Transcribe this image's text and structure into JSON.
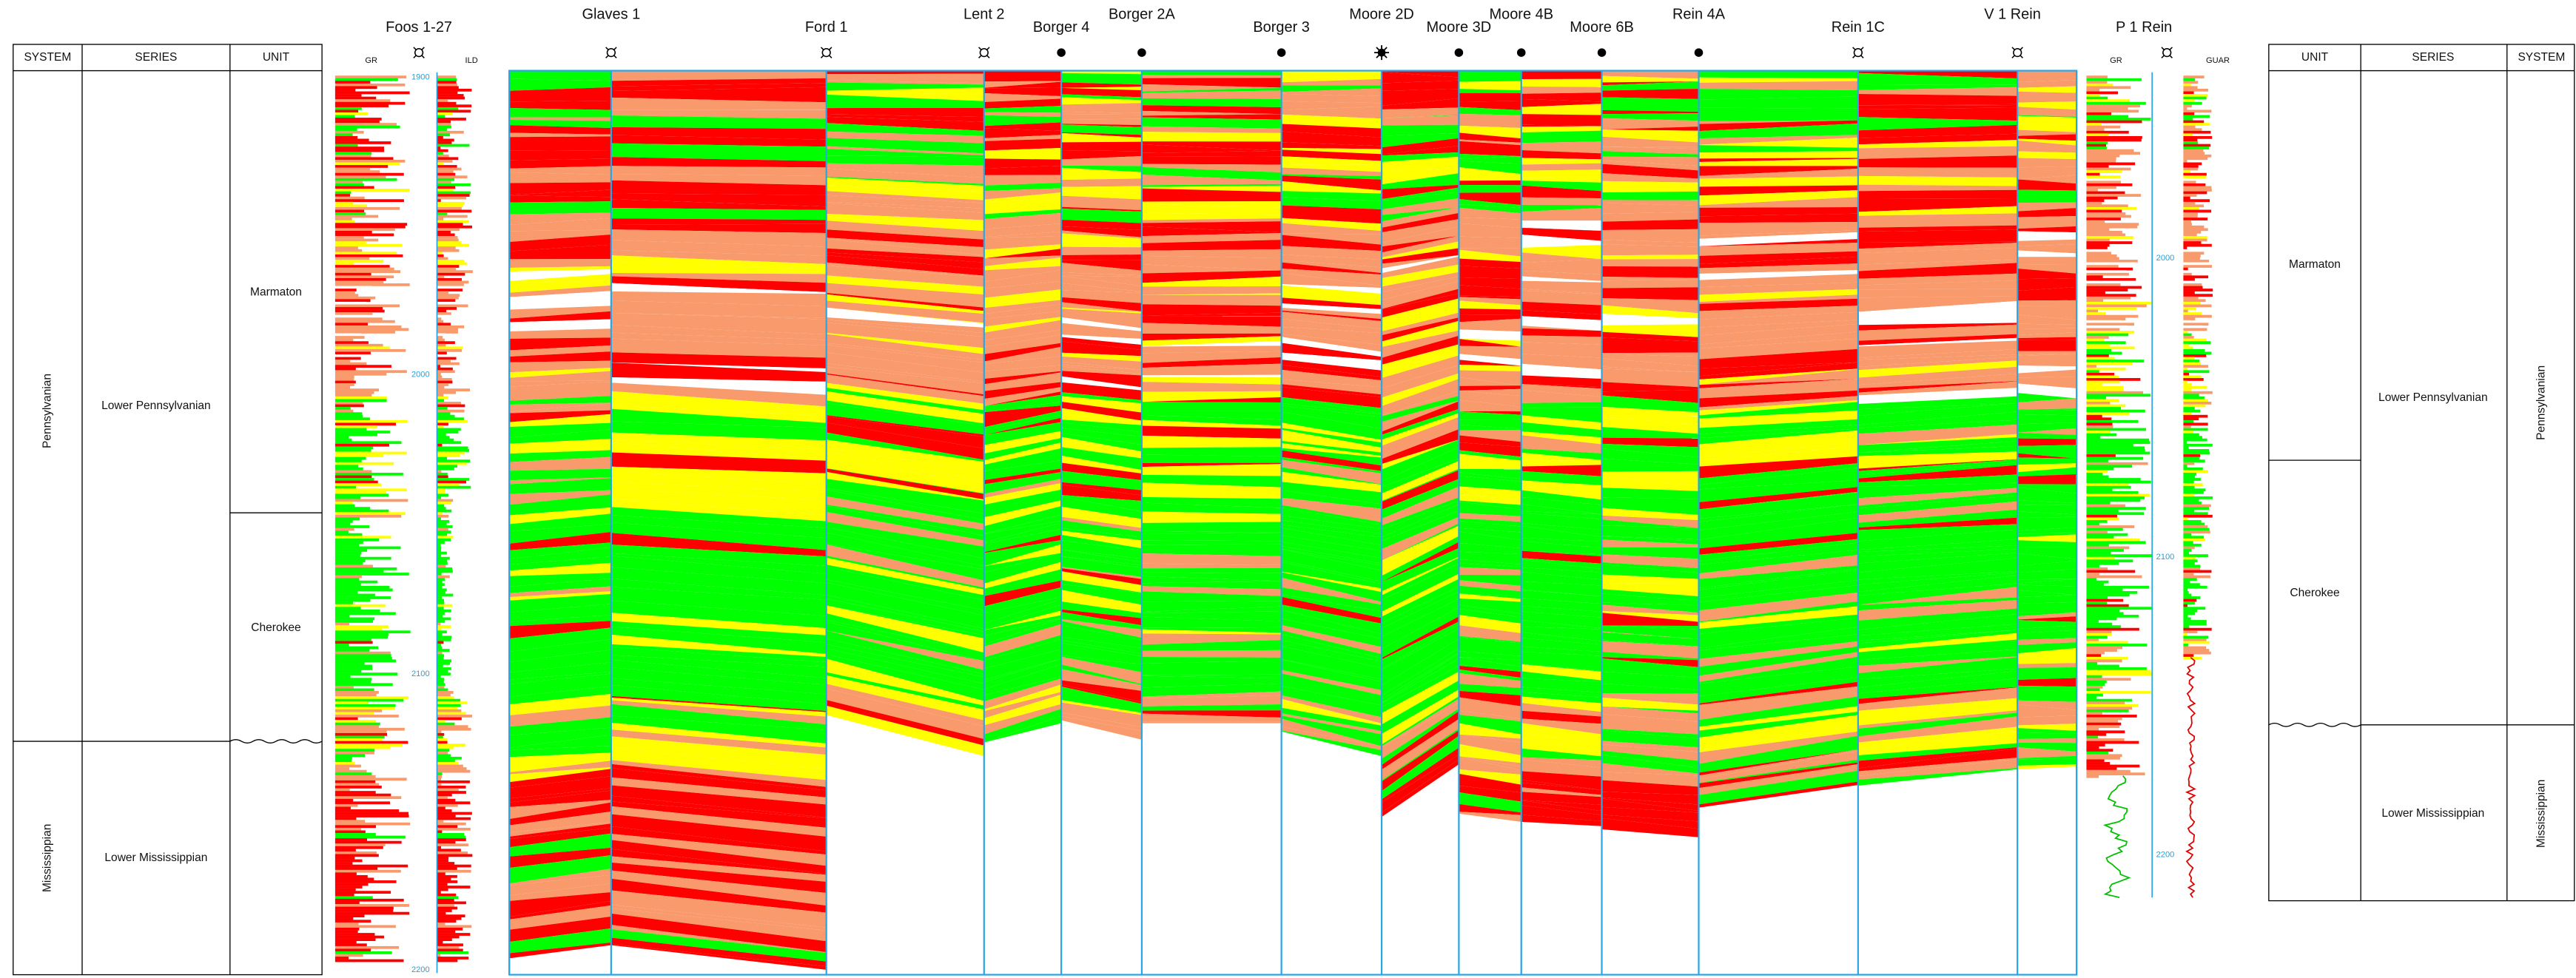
{
  "left_table": {
    "headers": [
      "SYSTEM",
      "SERIES",
      "UNIT"
    ],
    "systems": [
      "Pennsylvanian",
      "Mississippian"
    ],
    "series": [
      "Lower Pennsylvanian",
      "Lower Mississippian"
    ],
    "units": [
      "Marmaton",
      "Cherokee"
    ]
  },
  "right_table": {
    "headers": [
      "UNIT",
      "SERIES",
      "SYSTEM"
    ],
    "systems": [
      "Pennsylvanian",
      "Mississippian"
    ],
    "series": [
      "Lower Pennsylvanian",
      "Lower Mississippian"
    ],
    "units": [
      "Marmaton",
      "Cherokee"
    ]
  },
  "left_log": {
    "well": "Foos 1-27",
    "curves": [
      "GR",
      "ILD"
    ],
    "depths": [
      1900,
      2000,
      2100,
      2200
    ]
  },
  "right_log": {
    "well": "P 1 Rein",
    "curves": [
      "GR",
      "GUAR"
    ],
    "depths": [
      2000,
      2100,
      2200
    ]
  },
  "wells": [
    "Glaves 1",
    "Ford 1",
    "Lent 2",
    "Borger 4",
    "Borger 2A",
    "Borger 3",
    "Moore 2D",
    "Moore 3D",
    "Moore 4B",
    "Moore 6B",
    "Rein 4A",
    "Rein 1C",
    "V 1 Rein"
  ]
}
